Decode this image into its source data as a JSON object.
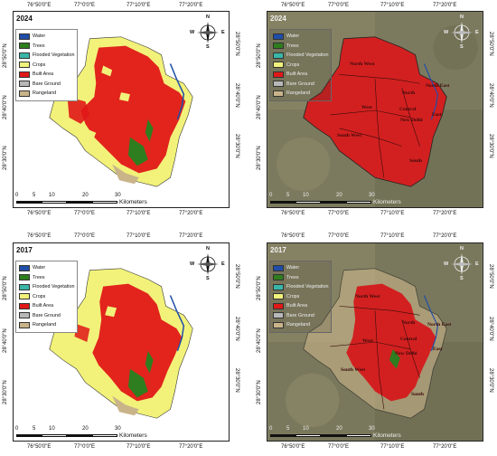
{
  "lon_ticks": [
    "76°50'0\"E",
    "77°0'0\"E",
    "77°10'0\"E",
    "77°20'0\"E"
  ],
  "lat_ticks": [
    "28°50'0\"N",
    "28°40'0\"N",
    "28°30'0\"N"
  ],
  "compass": {
    "n": "N",
    "s": "S",
    "e": "E",
    "w": "W"
  },
  "scale": {
    "labels": [
      "0",
      "5",
      "10",
      "20",
      "30"
    ],
    "unit": "Kilometers"
  },
  "legend": [
    {
      "label": "Water",
      "color": "#1f4ea8"
    },
    {
      "label": "Trees",
      "color": "#2e7d1e"
    },
    {
      "label": "Flooded Vegetation",
      "color": "#3ab6a8"
    },
    {
      "label": "Crops",
      "color": "#f2f27a"
    },
    {
      "label": "Built Area",
      "color": "#e01818"
    },
    {
      "label": "Bare Ground",
      "color": "#b8b8b8"
    },
    {
      "label": "Rangeland",
      "color": "#c9b48a"
    }
  ],
  "districts": [
    "North West",
    "North",
    "North East",
    "West",
    "Central",
    "East",
    "New Delhi",
    "South West",
    "South"
  ],
  "panels": [
    {
      "year": "2024",
      "style": "classified"
    },
    {
      "year": "2024",
      "style": "satellite"
    },
    {
      "year": "2017",
      "style": "classified"
    },
    {
      "year": "2017",
      "style": "satellite"
    }
  ]
}
